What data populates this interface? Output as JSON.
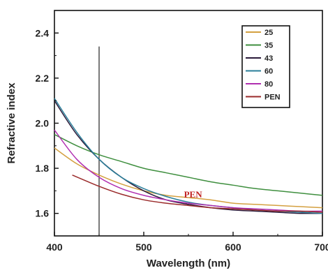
{
  "chart_data": {
    "type": "line",
    "xlabel": "Wavelength (nm)",
    "ylabel": "Refractive index",
    "xlim": [
      400,
      700
    ],
    "ylim": [
      1.5,
      2.5
    ],
    "xticks": [
      400,
      500,
      600,
      700
    ],
    "xtick_labels": [
      "400",
      "500",
      "600",
      "700"
    ],
    "yticks": [
      1.6,
      1.8,
      2.0,
      2.2,
      2.4
    ],
    "ytick_labels": [
      "1.6",
      "1.8",
      "2.0",
      "2.2",
      "2.4"
    ],
    "grid": false,
    "legend_position": "top-right",
    "series": [
      {
        "name": "25",
        "color": "#d4a040",
        "x": [
          400,
          425,
          450,
          475,
          500,
          525,
          550,
          575,
          600,
          625,
          650,
          675,
          700
        ],
        "y": [
          1.89,
          1.82,
          1.77,
          1.73,
          1.7,
          1.68,
          1.67,
          1.66,
          1.645,
          1.64,
          1.635,
          1.63,
          1.625
        ]
      },
      {
        "name": "35",
        "color": "#3f8f3f",
        "x": [
          400,
          425,
          450,
          475,
          500,
          525,
          550,
          575,
          600,
          625,
          650,
          675,
          700
        ],
        "y": [
          1.95,
          1.9,
          1.86,
          1.83,
          1.8,
          1.78,
          1.76,
          1.74,
          1.725,
          1.71,
          1.7,
          1.69,
          1.68
        ]
      },
      {
        "name": "43",
        "color": "#2a1a3a",
        "x": [
          400,
          425,
          450,
          475,
          500,
          525,
          550,
          575,
          600,
          625,
          650,
          675,
          700
        ],
        "y": [
          2.1,
          1.95,
          1.84,
          1.76,
          1.7,
          1.66,
          1.64,
          1.625,
          1.615,
          1.61,
          1.605,
          1.6,
          1.6
        ]
      },
      {
        "name": "60",
        "color": "#2a7f9a",
        "x": [
          400,
          425,
          450,
          475,
          500,
          525,
          550,
          575,
          600,
          625,
          650,
          675,
          700
        ],
        "y": [
          2.11,
          1.96,
          1.84,
          1.76,
          1.71,
          1.675,
          1.65,
          1.635,
          1.625,
          1.615,
          1.61,
          1.605,
          1.6
        ]
      },
      {
        "name": "80",
        "color": "#b02fb0",
        "x": [
          400,
          425,
          450,
          475,
          500,
          525,
          550,
          575,
          600,
          625,
          650,
          675,
          700
        ],
        "y": [
          1.97,
          1.84,
          1.76,
          1.71,
          1.68,
          1.66,
          1.645,
          1.635,
          1.625,
          1.62,
          1.615,
          1.61,
          1.61
        ]
      },
      {
        "name": "PEN",
        "color": "#9a2a2a",
        "x": [
          420,
          450,
          475,
          500,
          525,
          550,
          575,
          600,
          625,
          650,
          675,
          700
        ],
        "y": [
          1.77,
          1.72,
          1.685,
          1.66,
          1.645,
          1.635,
          1.625,
          1.62,
          1.615,
          1.61,
          1.61,
          1.605
        ]
      }
    ],
    "reference_line": {
      "x": 450,
      "y_top": 2.34,
      "color": "#333333"
    },
    "annotations": [
      {
        "text": "PEN",
        "x": 545,
        "y": 1.67,
        "color": "#c02020"
      }
    ]
  }
}
